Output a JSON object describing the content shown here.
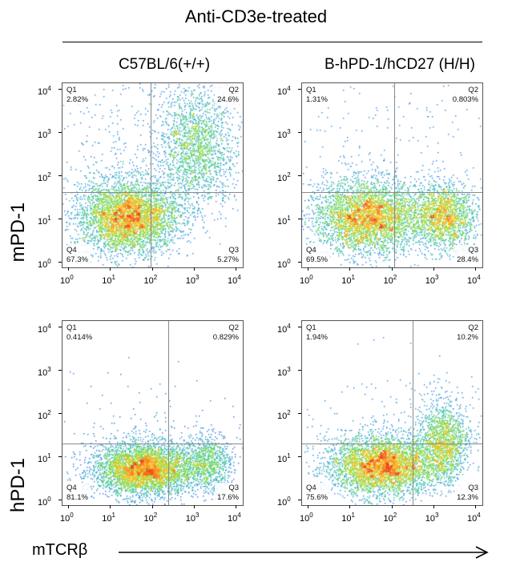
{
  "title": "Anti-CD3e-treated",
  "column_labels": [
    "C57BL/6(+/+)",
    "B-hPD-1/hCD27 (H/H)"
  ],
  "row_labels": [
    "mPD-1",
    "hPD-1"
  ],
  "x_axis_label": "mTCRβ",
  "tick_labels": [
    "0",
    "1",
    "2",
    "3",
    "4"
  ],
  "tick_base": "10",
  "chart_data": [
    {
      "type": "scatter",
      "row_label": "mPD-1",
      "column_label": "C57BL/6(+/+)",
      "xlabel": "mTCRβ",
      "ylabel": "mPD-1",
      "log_scale": true,
      "xlim": [
        0,
        4
      ],
      "ylim": [
        0,
        4
      ],
      "quadrants": [
        {
          "name": "Q1",
          "percent": "2.82%"
        },
        {
          "name": "Q2",
          "percent": "24.6%"
        },
        {
          "name": "Q3",
          "percent": "5.27%"
        },
        {
          "name": "Q4",
          "percent": "67.3%"
        }
      ]
    },
    {
      "type": "scatter",
      "row_label": "mPD-1",
      "column_label": "B-hPD-1/hCD27 (H/H)",
      "xlabel": "mTCRβ",
      "ylabel": "mPD-1",
      "log_scale": true,
      "xlim": [
        0,
        4
      ],
      "ylim": [
        0,
        4
      ],
      "quadrants": [
        {
          "name": "Q1",
          "percent": "1.31%"
        },
        {
          "name": "Q2",
          "percent": "0.803%"
        },
        {
          "name": "Q3",
          "percent": "28.4%"
        },
        {
          "name": "Q4",
          "percent": "69.5%"
        }
      ]
    },
    {
      "type": "scatter",
      "row_label": "hPD-1",
      "column_label": "C57BL/6(+/+)",
      "xlabel": "mTCRβ",
      "ylabel": "hPD-1",
      "log_scale": true,
      "xlim": [
        0,
        4
      ],
      "ylim": [
        0,
        4
      ],
      "quadrants": [
        {
          "name": "Q1",
          "percent": "0.414%"
        },
        {
          "name": "Q2",
          "percent": "0.829%"
        },
        {
          "name": "Q3",
          "percent": "17.6%"
        },
        {
          "name": "Q4",
          "percent": "81.1%"
        }
      ]
    },
    {
      "type": "scatter",
      "row_label": "hPD-1",
      "column_label": "B-hPD-1/hCD27 (H/H)",
      "xlabel": "mTCRβ",
      "ylabel": "hPD-1",
      "log_scale": true,
      "xlim": [
        0,
        4
      ],
      "ylim": [
        0,
        4
      ],
      "quadrants": [
        {
          "name": "Q1",
          "percent": "1.94%"
        },
        {
          "name": "Q2",
          "percent": "10.2%"
        },
        {
          "name": "Q3",
          "percent": "12.3%"
        },
        {
          "name": "Q4",
          "percent": "75.6%"
        }
      ]
    }
  ]
}
